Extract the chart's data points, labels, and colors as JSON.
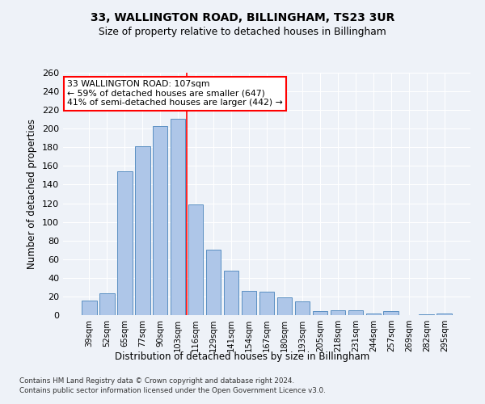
{
  "title1": "33, WALLINGTON ROAD, BILLINGHAM, TS23 3UR",
  "title2": "Size of property relative to detached houses in Billingham",
  "xlabel": "Distribution of detached houses by size in Billingham",
  "ylabel": "Number of detached properties",
  "categories": [
    "39sqm",
    "52sqm",
    "65sqm",
    "77sqm",
    "90sqm",
    "103sqm",
    "116sqm",
    "129sqm",
    "141sqm",
    "154sqm",
    "167sqm",
    "180sqm",
    "193sqm",
    "205sqm",
    "218sqm",
    "231sqm",
    "244sqm",
    "257sqm",
    "269sqm",
    "282sqm",
    "295sqm"
  ],
  "values": [
    16,
    23,
    154,
    181,
    203,
    211,
    119,
    70,
    48,
    26,
    25,
    19,
    15,
    4,
    5,
    5,
    2,
    4,
    0,
    1,
    2
  ],
  "bar_color": "#aec6e8",
  "bar_edge_color": "#5a8fc2",
  "vline_x": 5.5,
  "vline_color": "red",
  "annotation_line1": "33 WALLINGTON ROAD: 107sqm",
  "annotation_line2": "← 59% of detached houses are smaller (647)",
  "annotation_line3": "41% of semi-detached houses are larger (442) →",
  "annotation_box_color": "white",
  "annotation_box_edge": "red",
  "ylim": [
    0,
    260
  ],
  "yticks": [
    0,
    20,
    40,
    60,
    80,
    100,
    120,
    140,
    160,
    180,
    200,
    220,
    240,
    260
  ],
  "background_color": "#eef2f8",
  "grid_color": "white",
  "footnote1": "Contains HM Land Registry data © Crown copyright and database right 2024.",
  "footnote2": "Contains public sector information licensed under the Open Government Licence v3.0."
}
